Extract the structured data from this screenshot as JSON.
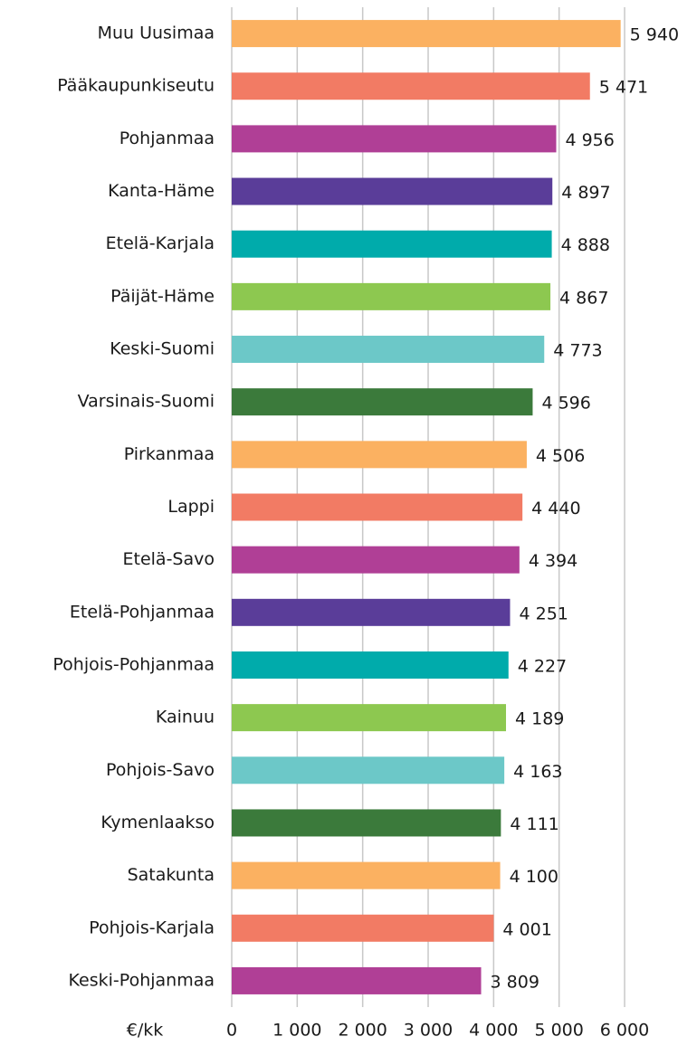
{
  "chart_data": {
    "type": "bar",
    "orientation": "horizontal",
    "categories": [
      "Muu Uusimaa",
      "Pääkaupunkiseutu",
      "Pohjanmaa",
      "Kanta-Häme",
      "Etelä-Karjala",
      "Päijät-Häme",
      "Keski-Suomi",
      "Varsinais-Suomi",
      "Pirkanmaa",
      "Lappi",
      "Etelä-Savo",
      "Etelä-Pohjanmaa",
      "Pohjois-Pohjanmaa",
      "Kainuu",
      "Pohjois-Savo",
      "Kymenlaakso",
      "Satakunta",
      "Pohjois-Karjala",
      "Keski-Pohjanmaa"
    ],
    "values": [
      5940,
      5471,
      4956,
      4897,
      4888,
      4867,
      4773,
      4596,
      4506,
      4440,
      4394,
      4251,
      4227,
      4189,
      4163,
      4111,
      4100,
      4001,
      3809
    ],
    "value_labels": [
      "5 940",
      "5 471",
      "4 956",
      "4 897",
      "4 888",
      "4 867",
      "4 773",
      "4 596",
      "4 506",
      "4 440",
      "4 394",
      "4 251",
      "4 227",
      "4 189",
      "4 163",
      "4 111",
      "4 100",
      "4 001",
      "3 809"
    ],
    "colors": [
      "#fbb161",
      "#f27b64",
      "#b03f96",
      "#5a3d99",
      "#00abab",
      "#8dc850",
      "#6cc8c8",
      "#3b7a3b",
      "#fbb161",
      "#f27b64",
      "#b03f96",
      "#5a3d99",
      "#00abab",
      "#8dc850",
      "#6cc8c8",
      "#3b7a3b",
      "#fbb161",
      "#f27b64",
      "#b03f96"
    ],
    "x_label": "€/kk",
    "xlim": [
      0,
      6000
    ],
    "xticks": [
      0,
      {
        "value": 1000,
        "label": "1 000"
      },
      {
        "value": 2000,
        "label": "2 000"
      },
      {
        "value": 3000,
        "label": "3 000"
      },
      {
        "value": 4000,
        "label": "4 000"
      },
      {
        "value": 5000,
        "label": "5 000"
      },
      {
        "value": 6000,
        "label": "6 000"
      }
    ],
    "grid": true
  }
}
